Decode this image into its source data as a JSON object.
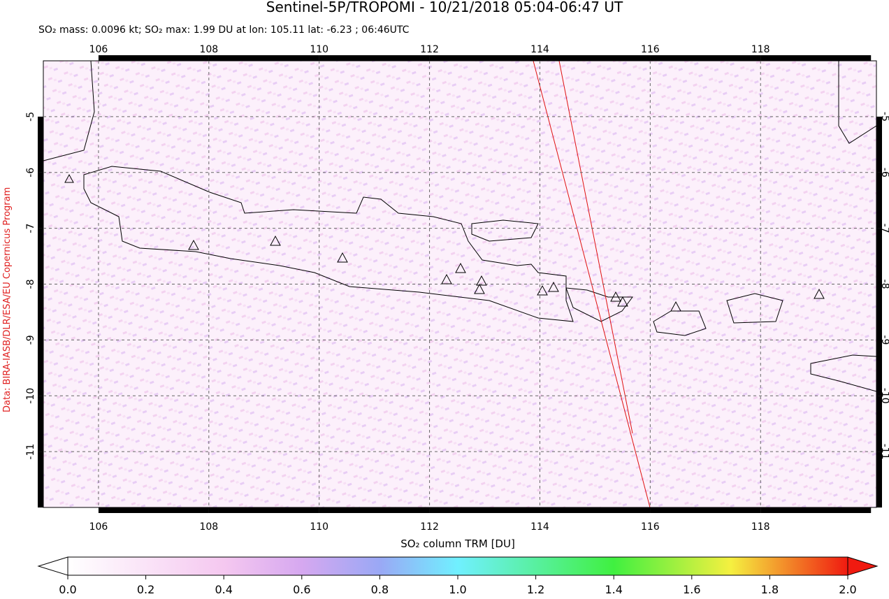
{
  "title": "Sentinel-5P/TROPOMI - 10/21/2018 05:04-06:47 UT",
  "subtitle": "SO₂ mass: 0.0096 kt; SO₂ max: 1.99 DU at lon: 105.11 lat: -6.23 ; 06:46UTC",
  "credit": "Data: BIRA-IASB/DLR/ESA/EU Copernicus Program",
  "map": {
    "xlim": [
      105,
      120.1
    ],
    "ylim": [
      -12,
      -4
    ],
    "xticks": [
      106,
      108,
      110,
      112,
      114,
      116,
      118
    ],
    "yticks": [
      -5,
      -6,
      -7,
      -8,
      -9,
      -10,
      -11
    ]
  },
  "colorbar": {
    "label": "SO₂ column TRM [DU]",
    "lim": [
      0,
      2
    ],
    "ticks": [
      {
        "value": 0,
        "label": "0.0"
      },
      {
        "value": 0.2,
        "label": "0.2"
      },
      {
        "value": 0.4,
        "label": "0.4"
      },
      {
        "value": 0.6,
        "label": "0.6"
      },
      {
        "value": 0.8,
        "label": "0.8"
      },
      {
        "value": 1,
        "label": "1.0"
      },
      {
        "value": 1.2,
        "label": "1.2"
      },
      {
        "value": 1.4,
        "label": "1.4"
      },
      {
        "value": 1.6,
        "label": "1.6"
      },
      {
        "value": 1.8,
        "label": "1.8"
      },
      {
        "value": 2,
        "label": "2.0"
      }
    ]
  }
}
